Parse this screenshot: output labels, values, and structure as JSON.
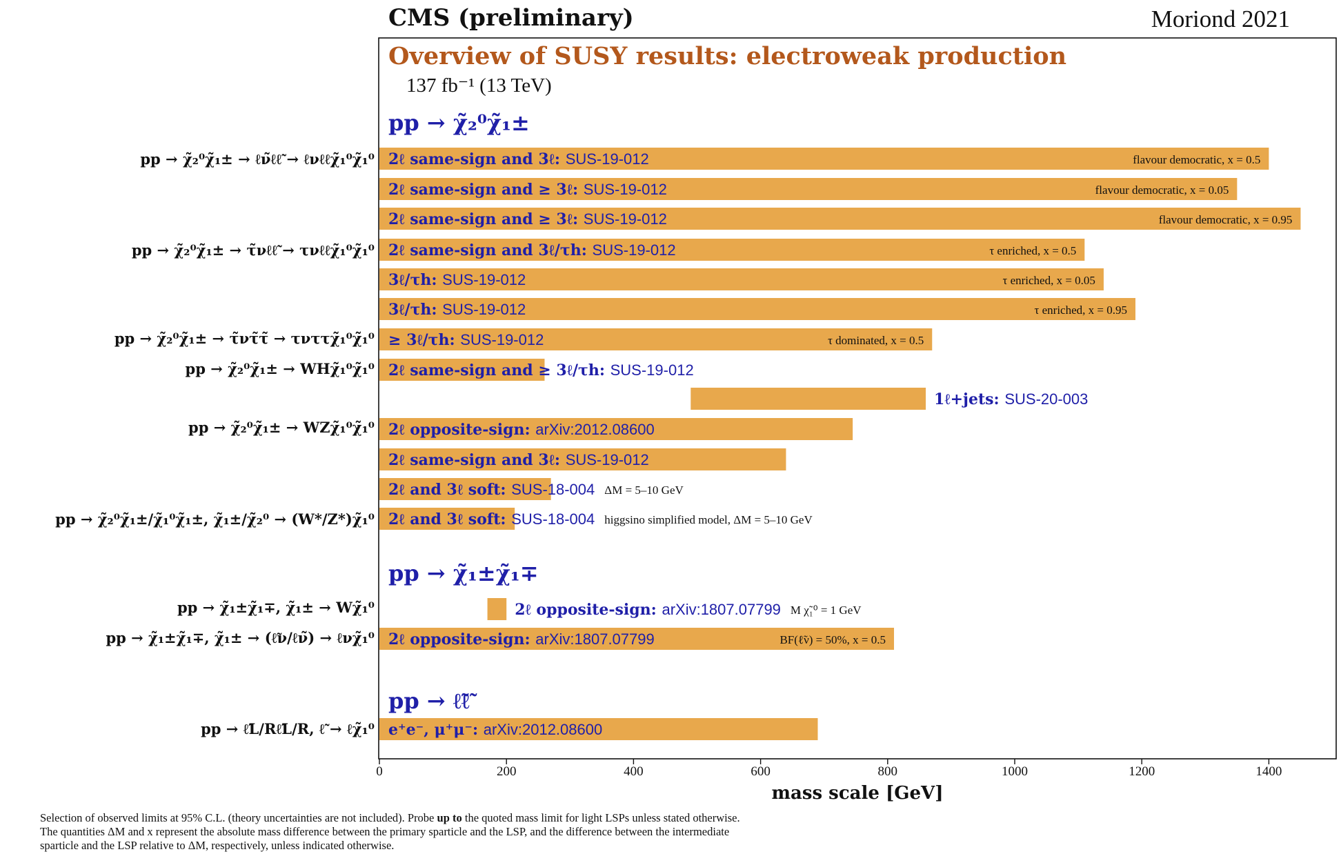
{
  "header": {
    "experiment": "CMS (preliminary)",
    "conference": "Moriond 2021"
  },
  "colors": {
    "bar": "#E8A84C",
    "title": "#B3581C",
    "section": "#1F1FA8",
    "label": "#1F1FA8",
    "annotation": "#111111"
  },
  "footnote": {
    "line1_a": "Selection of observed limits at 95% C.L. (theory uncertainties are not included). Probe ",
    "line1_b": "up to",
    "line1_c": " the quoted mass limit for light LSPs unless stated otherwise.",
    "line2": "The quantities ΔM and x represent the absolute mass difference between the primary sparticle and the LSP, and the difference between the intermediate",
    "line3": "sparticle and the LSP relative to ΔM, respectively, unless indicated otherwise."
  },
  "chart_data": {
    "type": "bar",
    "orientation": "horizontal",
    "title": "Overview of SUSY results: electroweak production",
    "subtitle": "137 fb⁻¹ (13 TeV)",
    "xlabel": "mass scale [GeV]",
    "xlim": [
      0,
      1510
    ],
    "xticks": [
      0,
      200,
      400,
      600,
      800,
      1000,
      1200,
      1400
    ],
    "grid": false,
    "sections": [
      "pp → χ̃₂⁰χ̃₁±",
      "pp → χ̃₁±χ̃₁∓",
      "pp → ℓ̃ℓ̃"
    ],
    "processes": [
      "pp → χ̃₂⁰χ̃₁± → ℓν̃ℓℓ̃ → ℓνℓℓχ̃₁⁰χ̃₁⁰",
      "pp → χ̃₂⁰χ̃₁± → τ̃νℓℓ̃ → τνℓℓχ̃₁⁰χ̃₁⁰",
      "pp → χ̃₂⁰χ̃₁± → τ̃ντ̃τ̃ → τνττχ̃₁⁰χ̃₁⁰",
      "pp → χ̃₂⁰χ̃₁± → WHχ̃₁⁰χ̃₁⁰",
      "pp → χ̃₂⁰χ̃₁± → WZχ̃₁⁰χ̃₁⁰",
      "pp → χ̃₂⁰χ̃₁±/χ̃₁⁰χ̃₁±, χ̃₁±/χ̃₂⁰ → (W*/Z*)χ̃₁⁰",
      "pp → χ̃₁±χ̃₁∓, χ̃₁± → Wχ̃₁⁰",
      "pp → χ̃₁±χ̃₁∓, χ̃₁± → (ℓ̃ν/ℓν̃) → ℓνχ̃₁⁰",
      "pp → ℓ̃L/Rℓ̃L/R, ℓ̃ → ℓχ̃₁⁰"
    ],
    "bars": [
      {
        "label": "2ℓ same-sign and 3ℓ:",
        "analysis": "SUS-19-012",
        "min": 0,
        "max": 1400,
        "note": "flavour democratic, x = 0.5"
      },
      {
        "label": "2ℓ same-sign and ≥ 3ℓ:",
        "analysis": "SUS-19-012",
        "min": 0,
        "max": 1350,
        "note": "flavour democratic, x = 0.05"
      },
      {
        "label": "2ℓ same-sign and ≥ 3ℓ:",
        "analysis": "SUS-19-012",
        "min": 0,
        "max": 1450,
        "note": "flavour democratic, x = 0.95"
      },
      {
        "label": "2ℓ same-sign and 3ℓ/τh:",
        "analysis": "SUS-19-012",
        "min": 0,
        "max": 1110,
        "note": "τ enriched, x = 0.5"
      },
      {
        "label": "3ℓ/τh:",
        "analysis": "SUS-19-012",
        "min": 0,
        "max": 1140,
        "note": "τ enriched, x = 0.05"
      },
      {
        "label": "3ℓ/τh:",
        "analysis": "SUS-19-012",
        "min": 0,
        "max": 1190,
        "note": "τ enriched, x = 0.95"
      },
      {
        "label": "≥ 3ℓ/τh:",
        "analysis": "SUS-19-012",
        "min": 0,
        "max": 870,
        "note": "τ dominated, x = 0.5"
      },
      {
        "label": "2ℓ same-sign and ≥ 3ℓ/τh:",
        "analysis": "SUS-19-012",
        "min": 0,
        "max": 260,
        "note": ""
      },
      {
        "label": "1ℓ+jets:",
        "analysis": "SUS-20-003",
        "min": 490,
        "max": 860,
        "note": ""
      },
      {
        "label": "2ℓ opposite-sign:",
        "analysis": "arXiv:2012.08600",
        "min": 0,
        "max": 745,
        "note": ""
      },
      {
        "label": "2ℓ same-sign and 3ℓ:",
        "analysis": "SUS-19-012",
        "min": 0,
        "max": 640,
        "note": ""
      },
      {
        "label": "2ℓ and 3ℓ soft:",
        "analysis": "SUS-18-004",
        "min": 0,
        "max": 270,
        "note": "ΔM = 5–10 GeV"
      },
      {
        "label": "2ℓ and 3ℓ soft:",
        "analysis": "SUS-18-004",
        "min": 0,
        "max": 213,
        "note": "higgsino simplified model, ΔM = 5–10 GeV"
      },
      {
        "label": "2ℓ opposite-sign:",
        "analysis": "arXiv:1807.07799",
        "min": 170,
        "max": 200,
        "note": "M χ̃₁⁰ = 1 GeV"
      },
      {
        "label": "2ℓ opposite-sign:",
        "analysis": "arXiv:1807.07799",
        "min": 0,
        "max": 810,
        "note": "BF(ℓ̃ν) = 50%, x = 0.5"
      },
      {
        "label": "e⁺e⁻, μ⁺μ⁻:",
        "analysis": "arXiv:2012.08600",
        "min": 0,
        "max": 690,
        "note": ""
      }
    ]
  }
}
